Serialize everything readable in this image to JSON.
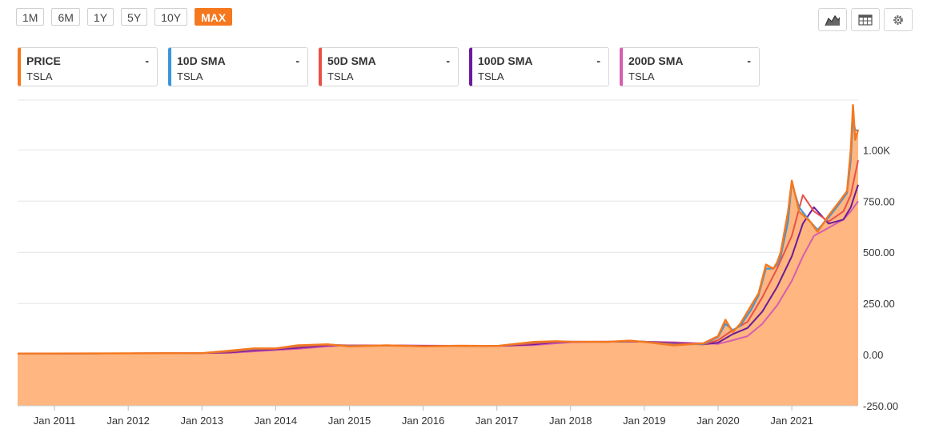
{
  "range_buttons": [
    {
      "label": "1M",
      "active": false
    },
    {
      "label": "6M",
      "active": false
    },
    {
      "label": "1Y",
      "active": false
    },
    {
      "label": "5Y",
      "active": false
    },
    {
      "label": "10Y",
      "active": false
    },
    {
      "label": "MAX",
      "active": true
    }
  ],
  "toolbar": {
    "icons": [
      "area-chart-icon",
      "table-icon",
      "gear-icon"
    ]
  },
  "legend": [
    {
      "name": "PRICE",
      "symbol": "TSLA",
      "value": "-",
      "color": "#f5781f"
    },
    {
      "name": "10D SMA",
      "symbol": "TSLA",
      "value": "-",
      "color": "#3a95dd"
    },
    {
      "name": "50D SMA",
      "symbol": "TSLA",
      "value": "-",
      "color": "#e9504a"
    },
    {
      "name": "100D SMA",
      "symbol": "TSLA",
      "value": "-",
      "color": "#6a1b9a"
    },
    {
      "name": "200D SMA",
      "symbol": "TSLA",
      "value": "-",
      "color": "#d65db1"
    }
  ],
  "chart_data": {
    "type": "area",
    "ylim": [
      -250,
      1250
    ],
    "y_ticks": [
      1000,
      750,
      500,
      250,
      0,
      -250
    ],
    "y_tick_labels": [
      "1.00K",
      "750.00",
      "500.00",
      "250.00",
      "0.00",
      "-250.00"
    ],
    "x_tick_labels": [
      "Jan 2011",
      "Jan 2012",
      "Jan 2013",
      "Jan 2014",
      "Jan 2015",
      "Jan 2016",
      "Jan 2017",
      "Jan 2018",
      "Jan 2019",
      "Jan 2020",
      "Jan 2021"
    ],
    "x_tick_years": [
      2011,
      2012,
      2013,
      2014,
      2015,
      2016,
      2017,
      2018,
      2019,
      2020,
      2021
    ],
    "xlim": [
      2010.5,
      2021.9
    ],
    "grid": true,
    "area_fill": "#ffb680",
    "series": [
      {
        "name": "PRICE",
        "color": "#f5781f",
        "x": [
          2010.5,
          2011.0,
          2011.5,
          2012.0,
          2012.5,
          2013.0,
          2013.4,
          2013.7,
          2014.0,
          2014.3,
          2014.7,
          2015.0,
          2015.5,
          2016.0,
          2016.5,
          2017.0,
          2017.5,
          2017.8,
          2018.0,
          2018.5,
          2018.8,
          2019.0,
          2019.4,
          2019.8,
          2020.0,
          2020.1,
          2020.2,
          2020.3,
          2020.45,
          2020.55,
          2020.65,
          2020.75,
          2020.8,
          2020.85,
          2020.95,
          2021.0,
          2021.1,
          2021.25,
          2021.35,
          2021.5,
          2021.65,
          2021.75,
          2021.8,
          2021.83,
          2021.86,
          2021.9
        ],
        "y": [
          4.5,
          5,
          5.5,
          6,
          6.5,
          7,
          20,
          30,
          30,
          45,
          50,
          40,
          45,
          40,
          43,
          42,
          62,
          65,
          63,
          62,
          68,
          62,
          45,
          55,
          90,
          170,
          110,
          150,
          240,
          300,
          440,
          420,
          450,
          500,
          700,
          850,
          700,
          650,
          600,
          680,
          750,
          800,
          1000,
          1220,
          1050,
          1100
        ]
      },
      {
        "name": "10D SMA",
        "color": "#3a95dd",
        "x": [
          2010.5,
          2011.0,
          2011.5,
          2012.0,
          2012.5,
          2013.0,
          2013.4,
          2013.7,
          2014.0,
          2014.3,
          2014.7,
          2015.0,
          2015.5,
          2016.0,
          2016.5,
          2017.0,
          2017.5,
          2017.8,
          2018.0,
          2018.5,
          2018.8,
          2019.0,
          2019.4,
          2019.8,
          2020.0,
          2020.1,
          2020.2,
          2020.3,
          2020.45,
          2020.55,
          2020.65,
          2020.75,
          2020.8,
          2020.85,
          2020.95,
          2021.0,
          2021.1,
          2021.25,
          2021.35,
          2021.5,
          2021.65,
          2021.75,
          2021.8,
          2021.83,
          2021.86,
          2021.9
        ],
        "y": [
          4.5,
          5,
          5.5,
          6,
          6.5,
          7,
          18,
          28,
          30,
          43,
          50,
          42,
          44,
          41,
          42,
          42,
          60,
          64,
          63,
          62,
          66,
          63,
          48,
          52,
          85,
          150,
          120,
          140,
          220,
          290,
          420,
          420,
          440,
          480,
          650,
          840,
          720,
          650,
          610,
          670,
          740,
          790,
          950,
          1150,
          1100,
          1090
        ]
      },
      {
        "name": "50D SMA",
        "color": "#e9504a",
        "x": [
          2010.5,
          2011.0,
          2011.5,
          2012.0,
          2012.5,
          2013.0,
          2013.4,
          2013.7,
          2014.0,
          2014.3,
          2014.7,
          2015.0,
          2015.5,
          2016.0,
          2016.5,
          2017.0,
          2017.5,
          2017.8,
          2018.0,
          2018.5,
          2018.8,
          2019.0,
          2019.4,
          2019.8,
          2020.0,
          2020.2,
          2020.4,
          2020.6,
          2020.8,
          2021.0,
          2021.15,
          2021.3,
          2021.5,
          2021.7,
          2021.8,
          2021.9
        ],
        "y": [
          4.5,
          5,
          5.5,
          6,
          6.5,
          7,
          14,
          25,
          29,
          38,
          48,
          45,
          44,
          42,
          42,
          42,
          55,
          62,
          63,
          63,
          64,
          63,
          52,
          50,
          70,
          120,
          160,
          280,
          420,
          580,
          780,
          700,
          650,
          700,
          780,
          950
        ]
      },
      {
        "name": "100D SMA",
        "color": "#6a1b9a",
        "x": [
          2010.5,
          2011.0,
          2011.5,
          2012.0,
          2012.5,
          2013.0,
          2013.4,
          2013.7,
          2014.0,
          2014.3,
          2014.7,
          2015.0,
          2015.5,
          2016.0,
          2016.5,
          2017.0,
          2017.5,
          2017.8,
          2018.0,
          2018.5,
          2018.8,
          2019.0,
          2019.4,
          2019.8,
          2020.0,
          2020.2,
          2020.4,
          2020.6,
          2020.8,
          2021.0,
          2021.15,
          2021.3,
          2021.5,
          2021.7,
          2021.8,
          2021.9
        ],
        "y": [
          4.5,
          5,
          5.5,
          6,
          6.5,
          7,
          11,
          20,
          26,
          33,
          45,
          45,
          44,
          43,
          42,
          42,
          50,
          60,
          62,
          63,
          63,
          63,
          56,
          50,
          58,
          100,
          130,
          210,
          330,
          480,
          640,
          720,
          640,
          660,
          720,
          830
        ]
      },
      {
        "name": "200D SMA",
        "color": "#d65db1",
        "x": [
          2010.5,
          2011.0,
          2011.5,
          2012.0,
          2012.5,
          2013.0,
          2013.4,
          2013.7,
          2014.0,
          2014.3,
          2014.7,
          2015.0,
          2015.5,
          2016.0,
          2016.5,
          2017.0,
          2017.5,
          2017.8,
          2018.0,
          2018.5,
          2018.8,
          2019.0,
          2019.4,
          2019.8,
          2020.0,
          2020.2,
          2020.4,
          2020.6,
          2020.8,
          2021.0,
          2021.15,
          2021.3,
          2021.5,
          2021.7,
          2021.8,
          2021.9
        ],
        "y": [
          4.5,
          5,
          5.5,
          6,
          6.5,
          7,
          9,
          15,
          22,
          28,
          40,
          45,
          45,
          44,
          43,
          42,
          46,
          55,
          60,
          62,
          63,
          63,
          60,
          55,
          52,
          70,
          90,
          150,
          240,
          360,
          480,
          580,
          620,
          660,
          700,
          750
        ]
      }
    ]
  }
}
